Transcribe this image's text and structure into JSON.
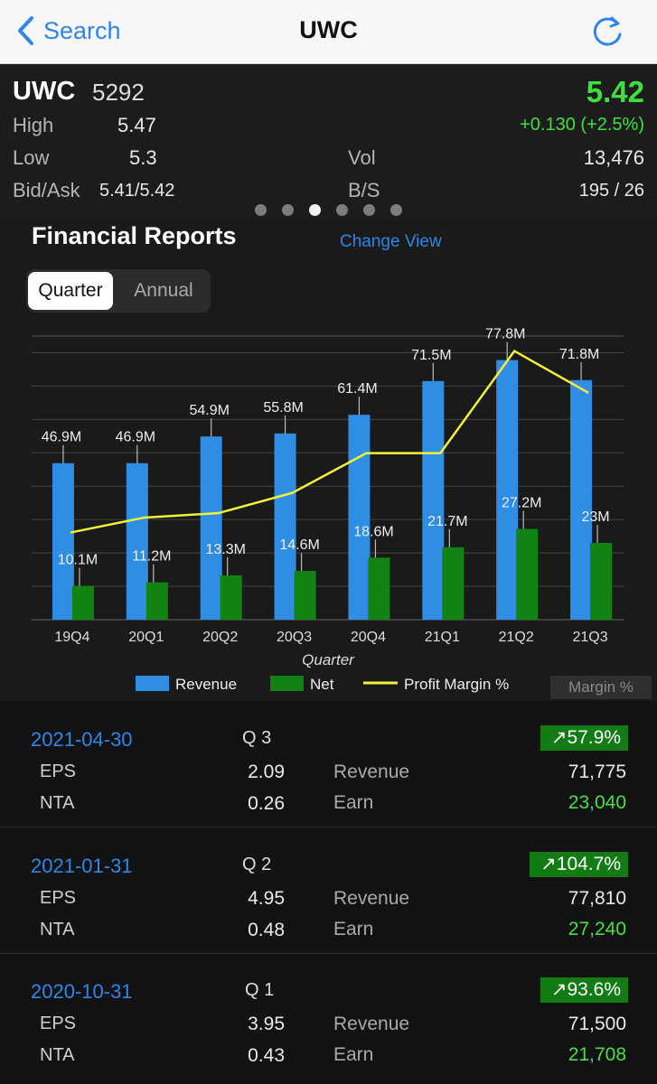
{
  "nav": {
    "back_label": "Search",
    "title": "UWC"
  },
  "quote": {
    "symbol": "UWC",
    "code": "5292",
    "price": "5.42",
    "change": "+0.130 (+2.5%)",
    "high_label": "High",
    "high": "5.47",
    "low_label": "Low",
    "low": "5.3",
    "vol_label": "Vol",
    "vol": "13,476",
    "bidask_label": "Bid/Ask",
    "bidask": "5.41/5.42",
    "bs_label": "B/S",
    "bs": "195 / 26"
  },
  "pager": {
    "count": 6,
    "active_index": 2
  },
  "section": {
    "title": "Financial Reports",
    "change_view": "Change View"
  },
  "segment": {
    "quarter": "Quarter",
    "annual": "Annual",
    "selected": "Quarter"
  },
  "chart_data": {
    "type": "bar",
    "categories": [
      "19Q4",
      "20Q1",
      "20Q2",
      "20Q3",
      "20Q4",
      "21Q1",
      "21Q2",
      "21Q3"
    ],
    "xlabel": "Quarter",
    "series": [
      {
        "name": "Revenue",
        "type": "bar",
        "color": "#2f8de4",
        "values": [
          46.9,
          46.9,
          54.9,
          55.8,
          61.4,
          71.5,
          77.8,
          71.8
        ],
        "labels": [
          "46.9M",
          "46.9M",
          "54.9M",
          "55.8M",
          "61.4M",
          "71.5M",
          "77.8M",
          "71.8M"
        ]
      },
      {
        "name": "Net",
        "type": "bar",
        "color": "#128312",
        "values": [
          10.1,
          11.2,
          13.3,
          14.6,
          18.6,
          21.7,
          27.2,
          23.0
        ],
        "labels": [
          "10.1M",
          "11.2M",
          "13.3M",
          "14.6M",
          "18.6M",
          "21.7M",
          "27.2M",
          "23M"
        ]
      },
      {
        "name": "Profit Margin %",
        "type": "line",
        "color": "#f2f23a",
        "values": [
          21.5,
          25.2,
          26.3,
          31.3,
          41.1,
          41.1,
          66.3,
          56.0
        ]
      }
    ],
    "ylim": [
      0,
      85
    ],
    "grid": true,
    "legend": "bottom",
    "margin_axis_label": "Margin %"
  },
  "reports": [
    {
      "date": "2021-04-30",
      "quarter": "Q  3",
      "growth": "57.9%",
      "eps_label": "EPS",
      "eps": "2.09",
      "nta_label": "NTA",
      "nta": "0.26",
      "revenue_label": "Revenue",
      "revenue": "71,775",
      "earn_label": "Earn",
      "earn": "23,040"
    },
    {
      "date": "2021-01-31",
      "quarter": "Q  2",
      "growth": "104.7%",
      "eps_label": "EPS",
      "eps": "4.95",
      "nta_label": "NTA",
      "nta": "0.48",
      "revenue_label": "Revenue",
      "revenue": "77,810",
      "earn_label": "Earn",
      "earn": "27,240"
    },
    {
      "date": "2020-10-31",
      "quarter": "Q  1",
      "growth": "93.6%",
      "eps_label": "EPS",
      "eps": "3.95",
      "nta_label": "NTA",
      "nta": "0.43",
      "revenue_label": "Revenue",
      "revenue": "71,500",
      "earn_label": "Earn",
      "earn": "21,708"
    }
  ],
  "colors": {
    "accent": "#2f86ea",
    "up": "#3ee03e",
    "badge": "#137b13"
  }
}
